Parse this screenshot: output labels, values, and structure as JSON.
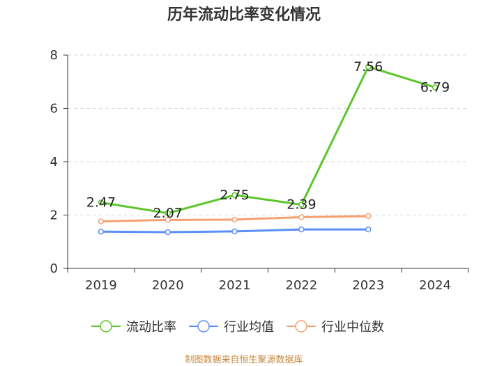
{
  "chart_data": {
    "type": "line",
    "title": "历年流动比率变化情况",
    "categories": [
      "2019",
      "2020",
      "2021",
      "2022",
      "2023",
      "2024"
    ],
    "ylim": [
      0,
      8
    ],
    "yticks": [
      0,
      2,
      4,
      6,
      8
    ],
    "grid": true,
    "legend_position": "bottom",
    "series": [
      {
        "name": "流动比率",
        "color": "#5cc62c",
        "values": [
          2.47,
          2.07,
          2.75,
          2.39,
          7.56,
          6.79
        ],
        "labels": true
      },
      {
        "name": "行业均值",
        "color": "#5b8ff9",
        "values": [
          1.38,
          1.36,
          1.39,
          1.46,
          1.46,
          null
        ],
        "labels": false
      },
      {
        "name": "行业中位数",
        "color": "#f5a06f",
        "values": [
          1.76,
          1.82,
          1.83,
          1.92,
          1.96,
          null
        ],
        "labels": false
      }
    ],
    "source": "制图数据来自恒生聚源数据库"
  }
}
